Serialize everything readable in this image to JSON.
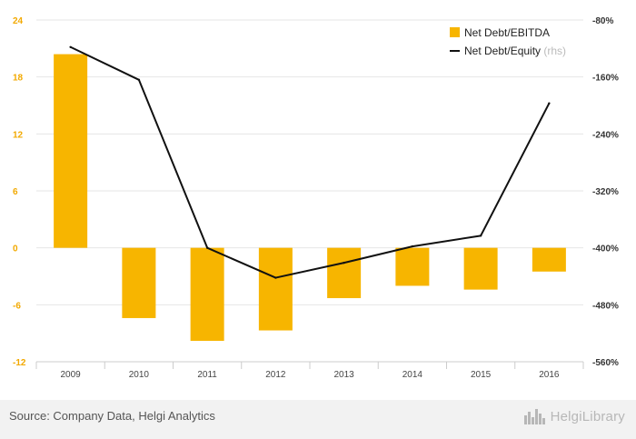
{
  "chart_data": {
    "type": "bar+line",
    "categories": [
      "2009",
      "2010",
      "2011",
      "2012",
      "2013",
      "2014",
      "2015",
      "2016"
    ],
    "series": [
      {
        "name": "Net Debt/EBITDA",
        "type": "bar",
        "axis": "left",
        "color": "#f7b500",
        "values": [
          20.4,
          -7.4,
          -9.8,
          -8.7,
          -5.3,
          -4.0,
          -4.4,
          -2.5
        ]
      },
      {
        "name": "Net Debt/Equity",
        "name_suffix": "(rhs)",
        "type": "line",
        "axis": "right",
        "color": "#111111",
        "values": [
          -118,
          -164,
          -400,
          -442,
          -421,
          -398,
          -383,
          -197
        ]
      }
    ],
    "y_left": {
      "min": -12,
      "max": 24,
      "ticks": [
        "24",
        "18",
        "12",
        "6",
        "0",
        "-6",
        "-12"
      ],
      "tick_values": [
        24,
        18,
        12,
        6,
        0,
        -6,
        -12
      ]
    },
    "y_right": {
      "min": -560,
      "max": -80,
      "ticks": [
        "-80%",
        "-160%",
        "-240%",
        "-320%",
        "-400%",
        "-480%",
        "-560%"
      ],
      "tick_values": [
        -80,
        -160,
        -240,
        -320,
        -400,
        -480,
        -560
      ]
    },
    "grid": true,
    "legend_position": "top-right"
  },
  "footer": {
    "source": "Source: Company Data, Helgi Analytics",
    "brand": "HelgiLibrary",
    "brand_icon": "city-skyline-icon"
  }
}
